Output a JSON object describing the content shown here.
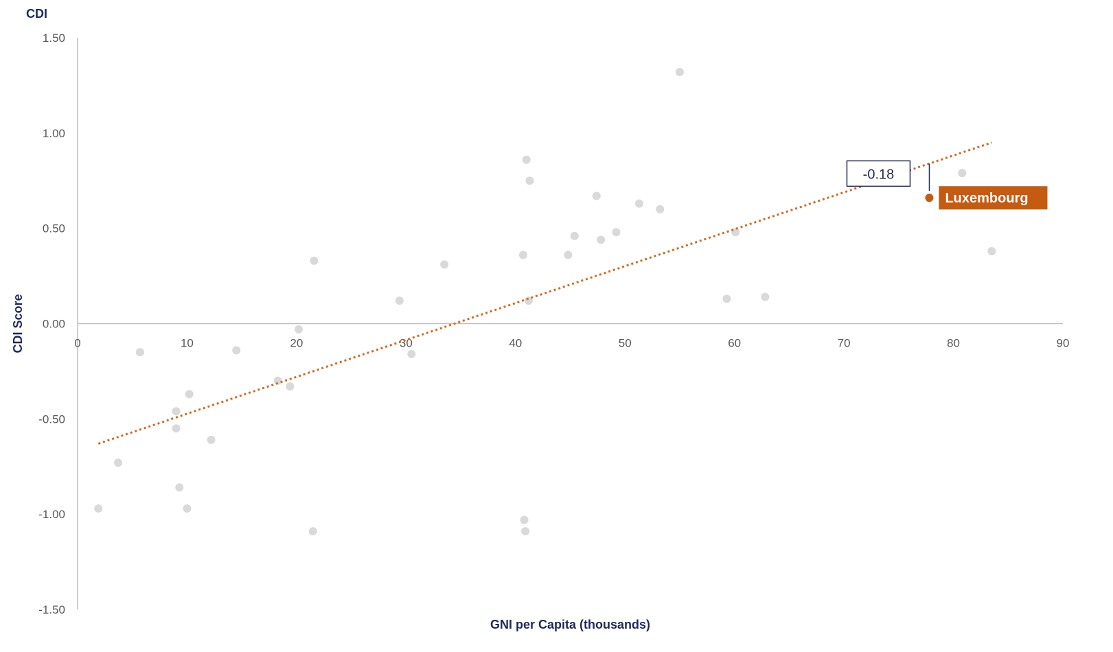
{
  "chart_data": {
    "type": "scatter",
    "title": "CDI",
    "xlabel": "GNI per Capita (thousands)",
    "ylabel": "CDI Score",
    "xlim": [
      0,
      90
    ],
    "ylim": [
      -1.5,
      1.5
    ],
    "x_ticks": [
      "0",
      "10",
      "20",
      "30",
      "40",
      "50",
      "60",
      "70",
      "80",
      "90"
    ],
    "y_ticks": [
      "1.50",
      "1.00",
      "0.50",
      "0.00",
      "-0.50",
      "-1.00",
      "-1.50"
    ],
    "grid": false,
    "colors": {
      "points": "#d9d9d9",
      "trend": "#d4691e",
      "highlight": "#c55a11",
      "callout": "#1f2a5a",
      "axis": "#bfbfbf"
    },
    "points": [
      {
        "x": 1.9,
        "y": -0.97
      },
      {
        "x": 3.7,
        "y": -0.73
      },
      {
        "x": 5.7,
        "y": -0.15
      },
      {
        "x": 9.0,
        "y": -0.46
      },
      {
        "x": 9.0,
        "y": -0.55
      },
      {
        "x": 9.3,
        "y": -0.86
      },
      {
        "x": 10.0,
        "y": -0.97
      },
      {
        "x": 10.2,
        "y": -0.37
      },
      {
        "x": 12.2,
        "y": -0.61
      },
      {
        "x": 14.5,
        "y": -0.14
      },
      {
        "x": 18.3,
        "y": -0.3
      },
      {
        "x": 19.4,
        "y": -0.33
      },
      {
        "x": 20.2,
        "y": -0.03
      },
      {
        "x": 21.5,
        "y": -1.09
      },
      {
        "x": 21.6,
        "y": 0.33
      },
      {
        "x": 29.4,
        "y": 0.12
      },
      {
        "x": 30.5,
        "y": -0.16
      },
      {
        "x": 33.5,
        "y": 0.31
      },
      {
        "x": 40.7,
        "y": 0.36
      },
      {
        "x": 40.8,
        "y": -1.03
      },
      {
        "x": 40.9,
        "y": -1.09
      },
      {
        "x": 41.0,
        "y": 0.86
      },
      {
        "x": 41.2,
        "y": 0.12
      },
      {
        "x": 41.3,
        "y": 0.75
      },
      {
        "x": 44.8,
        "y": 0.36
      },
      {
        "x": 45.4,
        "y": 0.46
      },
      {
        "x": 47.4,
        "y": 0.67
      },
      {
        "x": 47.8,
        "y": 0.44
      },
      {
        "x": 49.2,
        "y": 0.48
      },
      {
        "x": 51.3,
        "y": 0.63
      },
      {
        "x": 53.2,
        "y": 0.6
      },
      {
        "x": 55.0,
        "y": 1.32
      },
      {
        "x": 59.3,
        "y": 0.13
      },
      {
        "x": 60.1,
        "y": 0.48
      },
      {
        "x": 62.8,
        "y": 0.14
      },
      {
        "x": 80.8,
        "y": 0.79
      },
      {
        "x": 83.5,
        "y": 0.38
      }
    ],
    "trendline": {
      "x1": 1.9,
      "y1": -0.63,
      "x2": 83.5,
      "y2": 0.95
    },
    "highlight": {
      "label": "Luxembourg",
      "x": 77.8,
      "y": 0.66
    },
    "callout": {
      "label": "-0.18"
    }
  }
}
